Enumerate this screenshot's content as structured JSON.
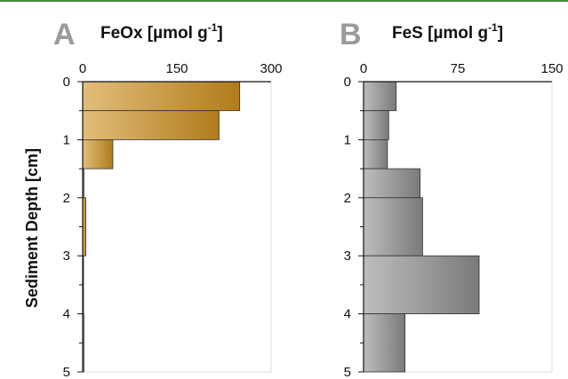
{
  "chart_data": [
    {
      "type": "bar",
      "orientation": "horizontal",
      "panel": "A",
      "title": "FeOx [µmol g",
      "title_sup": "-1",
      "title_close": "]",
      "ylabel": "Sediment Depth [cm]",
      "xlim": [
        0,
        300
      ],
      "xticks": [
        "0",
        "150",
        "300"
      ],
      "ylim": [
        0,
        5
      ],
      "yticks": [
        "0",
        "1",
        "2",
        "3",
        "4",
        "5"
      ],
      "fill_colors": [
        "#e2bd7a",
        "#b07c1a"
      ],
      "bars": [
        {
          "y0": 0.0,
          "y1": 0.5,
          "value": 250
        },
        {
          "y0": 0.5,
          "y1": 1.0,
          "value": 217
        },
        {
          "y0": 1.0,
          "y1": 1.5,
          "value": 48
        },
        {
          "y0": 1.5,
          "y1": 2.0,
          "value": 2
        },
        {
          "y0": 2.0,
          "y1": 3.0,
          "value": 5
        },
        {
          "y0": 3.0,
          "y1": 4.0,
          "value": 1
        },
        {
          "y0": 4.0,
          "y1": 5.0,
          "value": 2
        }
      ]
    },
    {
      "type": "bar",
      "orientation": "horizontal",
      "panel": "B",
      "title": "FeS [µmol g",
      "title_sup": "-1",
      "title_close": "]",
      "xlim": [
        0,
        150
      ],
      "xticks": [
        "0",
        "75",
        "150"
      ],
      "ylim": [
        0,
        5
      ],
      "yticks": [
        "0",
        "1",
        "2",
        "3",
        "4",
        "5"
      ],
      "fill_colors": [
        "#bdbdbd",
        "#7a7a7a"
      ],
      "bars": [
        {
          "y0": 0.0,
          "y1": 0.5,
          "value": 26
        },
        {
          "y0": 0.5,
          "y1": 1.0,
          "value": 20
        },
        {
          "y0": 1.0,
          "y1": 1.5,
          "value": 19
        },
        {
          "y0": 1.5,
          "y1": 2.0,
          "value": 45
        },
        {
          "y0": 2.0,
          "y1": 3.0,
          "value": 47
        },
        {
          "y0": 3.0,
          "y1": 4.0,
          "value": 92
        },
        {
          "y0": 4.0,
          "y1": 5.0,
          "value": 33
        }
      ]
    }
  ]
}
